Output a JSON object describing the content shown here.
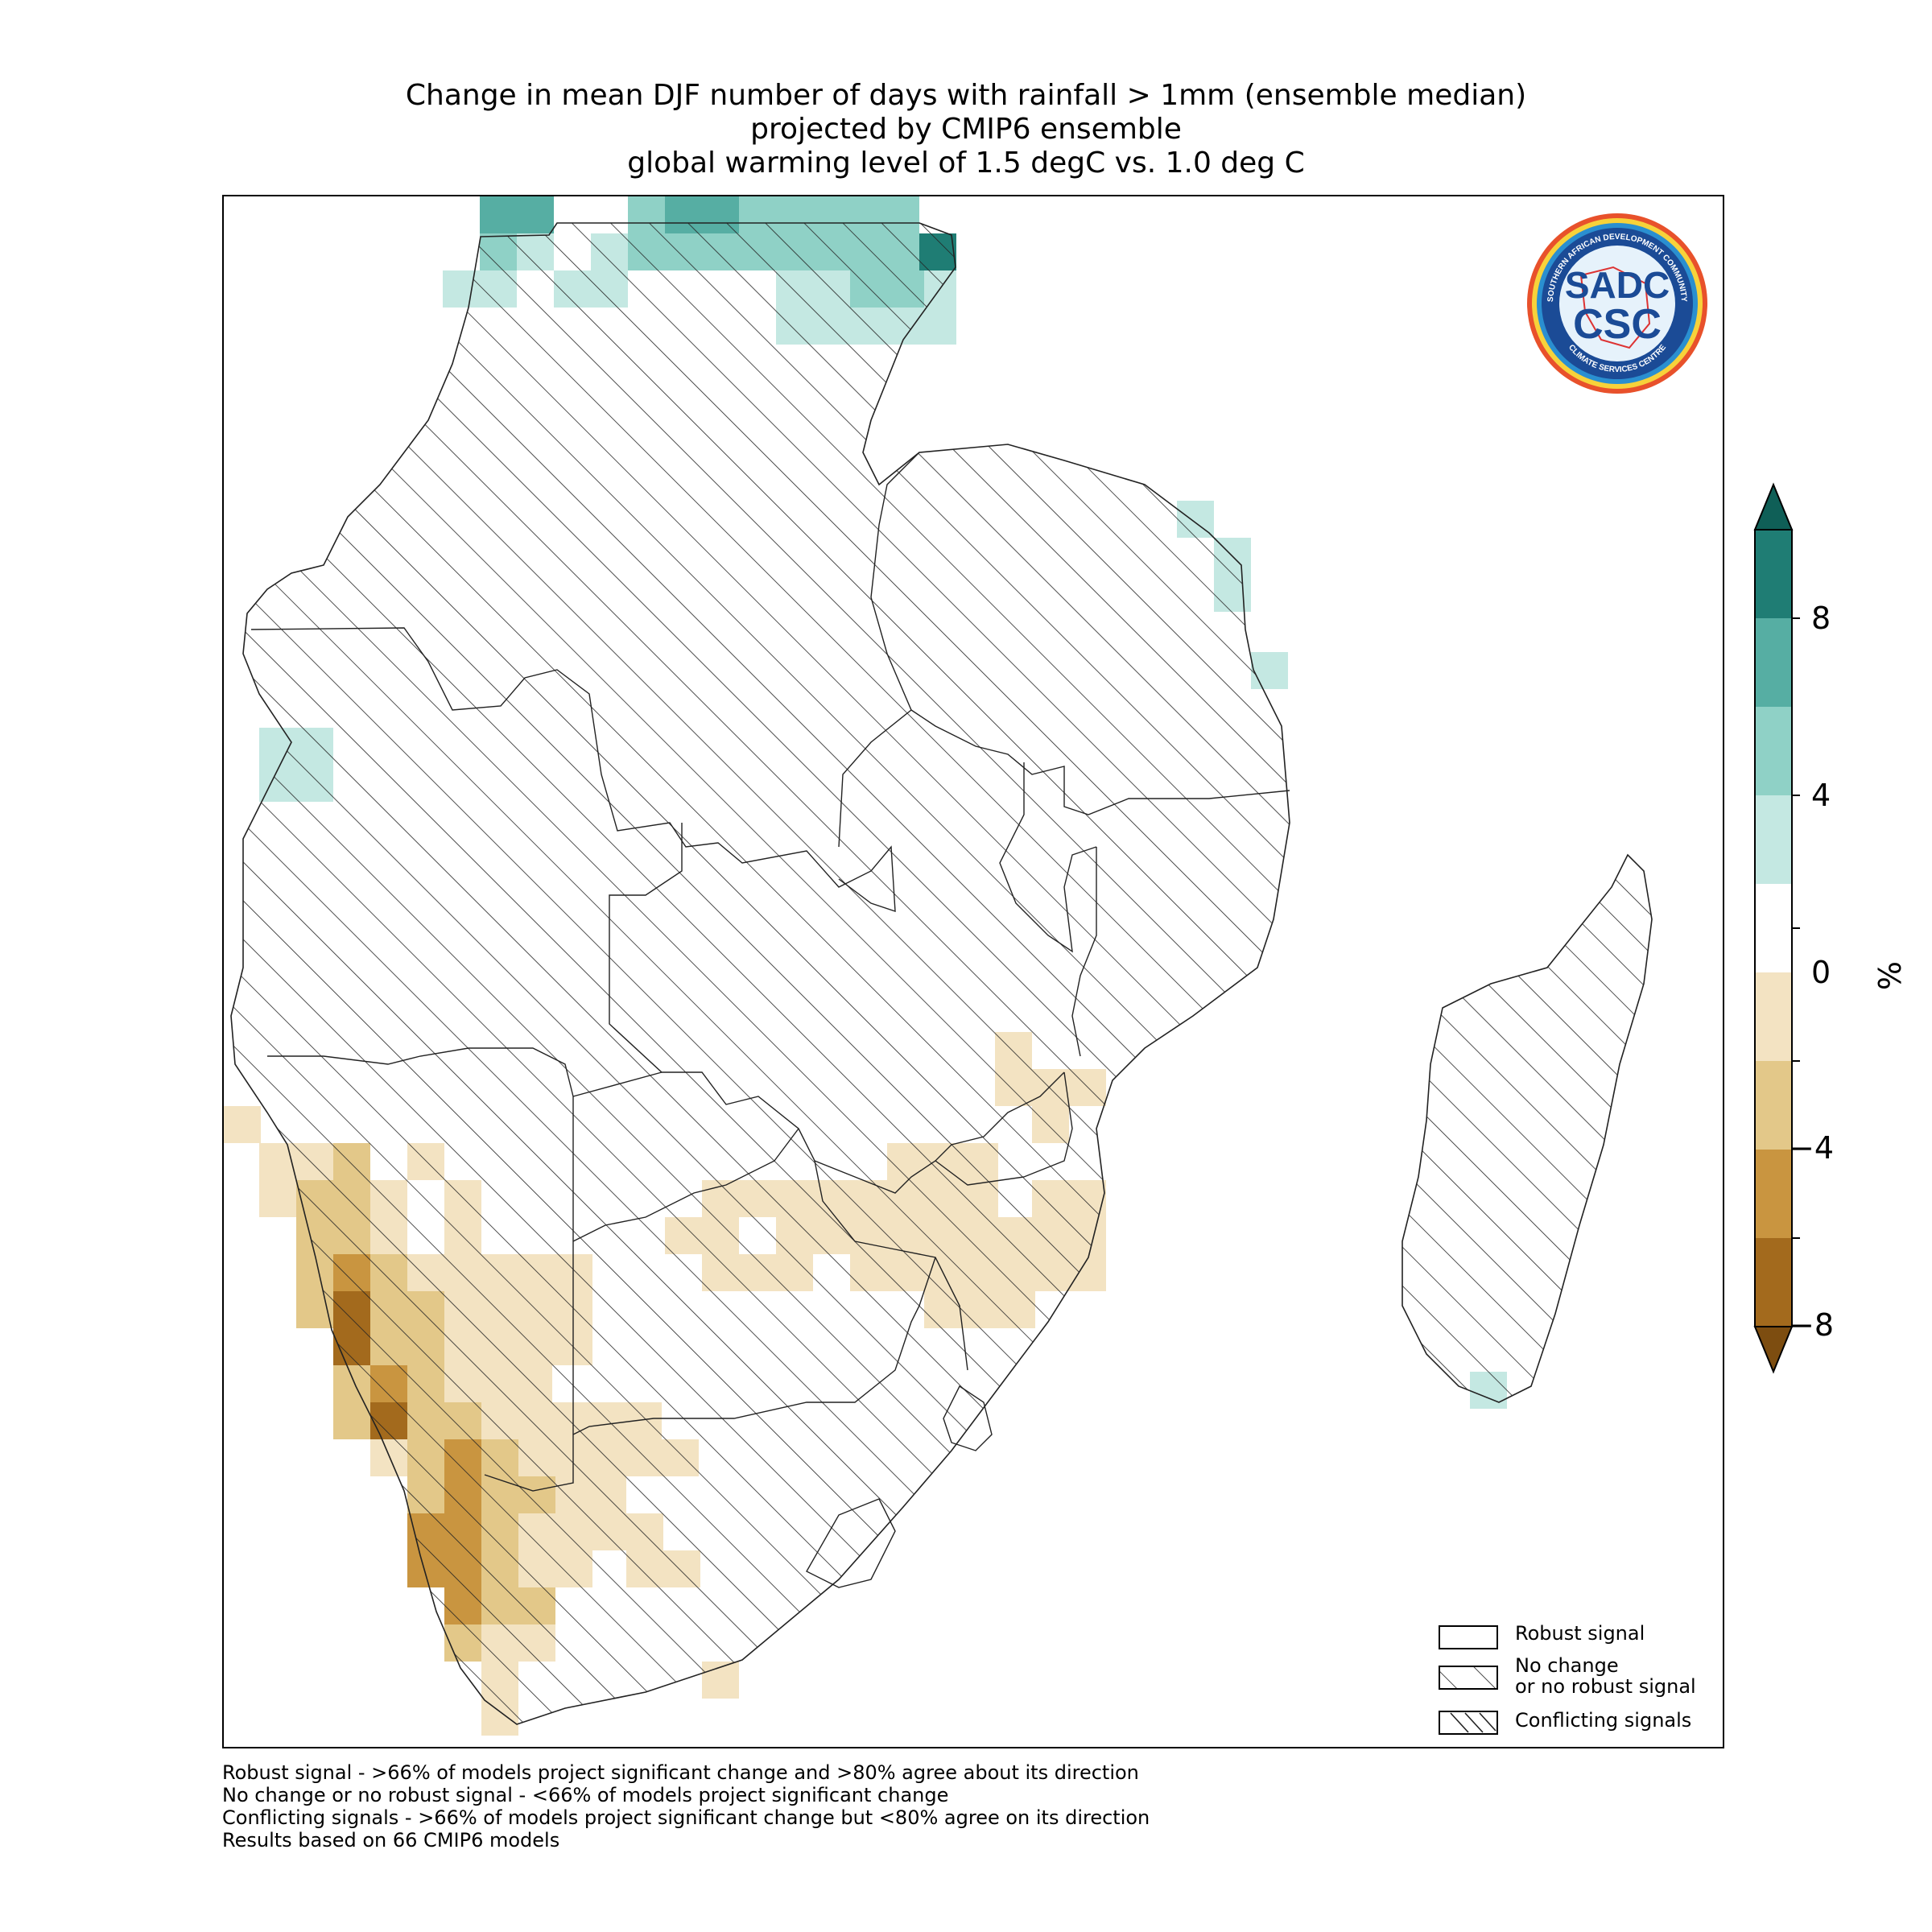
{
  "title": {
    "line1": "Change in mean DJF number of days with rainfall > 1mm (ensemble median)",
    "line2": "projected by CMIP6 ensemble",
    "line3": "global warming level of 1.5 degC vs. 1.0 deg C"
  },
  "legend": {
    "robust": "Robust signal",
    "no_change_1": "No change",
    "no_change_2": "or no robust signal",
    "conflicting": "Conflicting signals"
  },
  "colorbar": {
    "unit": "%",
    "ticks": [
      "8",
      "4",
      "0",
      "−4",
      "−8"
    ],
    "colors": [
      "#1f7d74",
      "#56aea3",
      "#8fd1c6",
      "#c4e8e2",
      "#ffffff",
      "#f3e3c2",
      "#e3c889",
      "#c99540",
      "#a36a1d"
    ],
    "extend_high": "#0f5f57",
    "extend_low": "#7d4d10"
  },
  "footnotes": [
    "Robust signal - >66% of models project significant change and >80% agree about its direction",
    "No change or no robust signal - <66% of models project significant change",
    "Conflicting signals - >66% of models project significant change but <80% agree on its direction",
    "Results based on 66 CMIP6 models"
  ],
  "logo": {
    "text_top": "SOUTHERN AFRICAN DEVELOPMENT COMMUNITY",
    "text_bottom": "CLIMATE SERVICES CENTRE",
    "initials_1": "SADC",
    "initials_2": "CSC"
  }
}
